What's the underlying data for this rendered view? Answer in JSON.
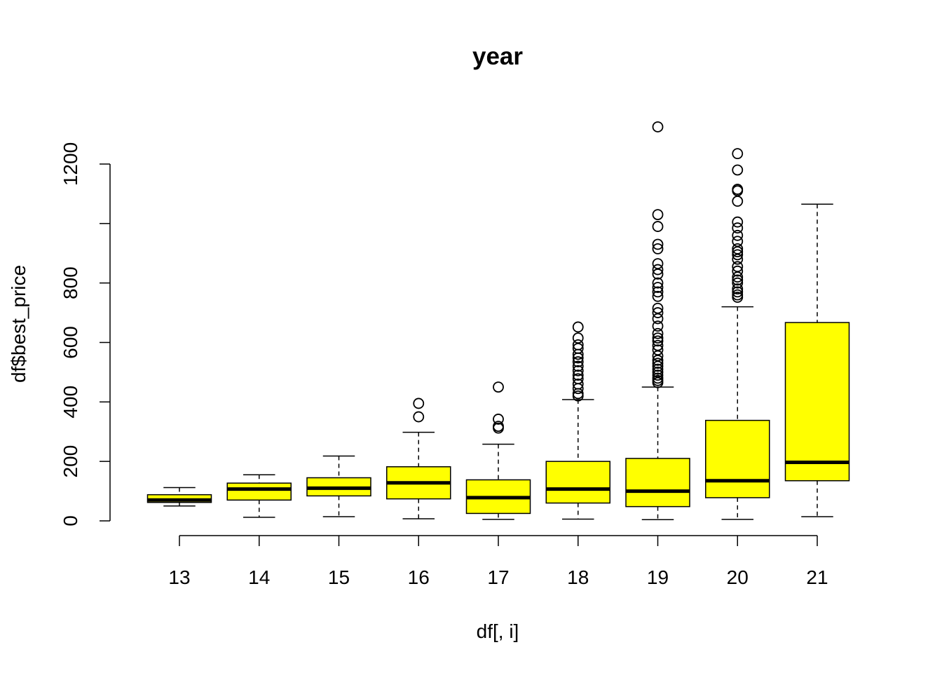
{
  "chart_data": {
    "type": "boxplot",
    "title": "year",
    "xlabel": "df[, i]",
    "ylabel": "df$best_price",
    "ylim": [
      -30,
      1345
    ],
    "y_ticks": [
      0,
      200,
      400,
      600,
      800,
      1000,
      1200
    ],
    "y_tick_labels": [
      "0",
      "200",
      "400",
      "600",
      "800",
      "",
      "1200"
    ],
    "box_fill": "#ffff00",
    "categories": [
      "13",
      "14",
      "15",
      "16",
      "17",
      "18",
      "19",
      "20",
      "21"
    ],
    "boxes": [
      {
        "label": "13",
        "whisker_low": 50,
        "q1": 62,
        "median": 70,
        "q3": 88,
        "whisker_high": 112,
        "outliers": []
      },
      {
        "label": "14",
        "whisker_low": 12,
        "q1": 70,
        "median": 107,
        "q3": 127,
        "whisker_high": 155,
        "outliers": []
      },
      {
        "label": "15",
        "whisker_low": 14,
        "q1": 84,
        "median": 110,
        "q3": 145,
        "whisker_high": 218,
        "outliers": []
      },
      {
        "label": "16",
        "whisker_low": 7,
        "q1": 74,
        "median": 128,
        "q3": 182,
        "whisker_high": 298,
        "outliers": [
          350,
          395
        ]
      },
      {
        "label": "17",
        "whisker_low": 5,
        "q1": 25,
        "median": 78,
        "q3": 138,
        "whisker_high": 258,
        "outliers": [
          312,
          318,
          342,
          450
        ]
      },
      {
        "label": "18",
        "whisker_low": 6,
        "q1": 60,
        "median": 107,
        "q3": 200,
        "whisker_high": 408,
        "outliers": [
          420,
          428,
          445,
          460,
          478,
          490,
          505,
          520,
          535,
          548,
          560,
          580,
          592,
          615,
          652
        ]
      },
      {
        "label": "19",
        "whisker_low": 4,
        "q1": 48,
        "median": 100,
        "q3": 210,
        "whisker_high": 450,
        "outliers": [
          465,
          472,
          480,
          490,
          500,
          510,
          520,
          530,
          540,
          555,
          575,
          590,
          605,
          615,
          630,
          655,
          680,
          700,
          715,
          755,
          770,
          785,
          800,
          830,
          845,
          865,
          915,
          930,
          990,
          1030,
          1325
        ]
      },
      {
        "label": "20",
        "whisker_low": 5,
        "q1": 78,
        "median": 135,
        "q3": 338,
        "whisker_high": 720,
        "outliers": [
          752,
          760,
          770,
          780,
          800,
          810,
          820,
          840,
          855,
          880,
          895,
          905,
          915,
          940,
          960,
          985,
          1005,
          1075,
          1110,
          1115,
          1180,
          1235
        ]
      },
      {
        "label": "21",
        "whisker_low": 14,
        "q1": 135,
        "median": 197,
        "q3": 667,
        "whisker_high": 1065,
        "outliers": []
      }
    ]
  }
}
